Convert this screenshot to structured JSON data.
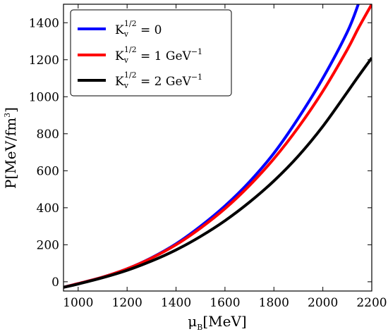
{
  "chart_data": {
    "type": "line",
    "xlabel": {
      "symbol": "μ",
      "subscript": "B",
      "unit": "[MeV]"
    },
    "ylabel": {
      "prefix": "P[MeV/fm",
      "superscript": "3",
      "suffix": "]"
    },
    "xlim": [
      940,
      2200
    ],
    "ylim": [
      -50,
      1500
    ],
    "xticks": [
      1000,
      1200,
      1400,
      1600,
      1800,
      2000,
      2200
    ],
    "yticks": [
      0,
      200,
      400,
      600,
      800,
      1000,
      1200,
      1400
    ],
    "legend": "top-left",
    "grid": false,
    "x": [
      940,
      1000,
      1100,
      1200,
      1300,
      1400,
      1500,
      1600,
      1700,
      1800,
      1900,
      2000,
      2100,
      2145,
      2200
    ],
    "series": [
      {
        "legend": {
          "base": "K",
          "sub": "v",
          "sup": "1/2",
          "value": " = 0"
        },
        "color": "#0000ff",
        "values": [
          -30,
          -10,
          25,
          70,
          130,
          205,
          300,
          410,
          540,
          695,
          885,
          1100,
          1350,
          1500,
          null
        ]
      },
      {
        "legend": {
          "base": "K",
          "sub": "v",
          "sup": "1/2",
          "value": " = 1 GeV",
          "value_sup": "−1"
        },
        "color": "#ff0000",
        "values": [
          -30,
          -10,
          25,
          70,
          128,
          200,
          290,
          395,
          520,
          665,
          835,
          1030,
          1255,
          1370,
          1500
        ]
      },
      {
        "legend": {
          "base": "K",
          "sub": "v",
          "sup": "1/2",
          "value": " = 2 GeV",
          "value_sup": "−1"
        },
        "color": "#000000",
        "values": [
          -30,
          -12,
          22,
          62,
          112,
          172,
          245,
          330,
          430,
          545,
          680,
          840,
          1025,
          1110,
          1210
        ]
      }
    ]
  }
}
